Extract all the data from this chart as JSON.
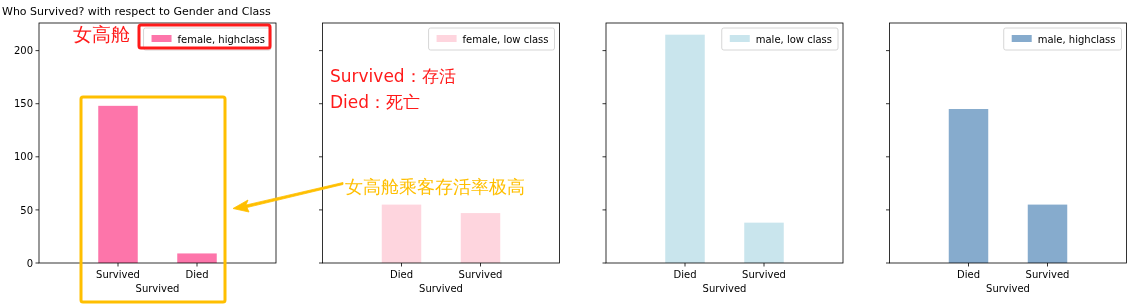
{
  "chart_data": [
    {
      "type": "bar",
      "title": "Who Survived? with respect to Gender and Class",
      "xlabel": "Survived",
      "categories": [
        "Survived",
        "Died"
      ],
      "series": [
        {
          "name": "female, highclass",
          "color": "#fd75aa",
          "values": [
            148,
            9
          ]
        }
      ],
      "ylim": [
        0,
        226
      ],
      "yticks": [
        0,
        50,
        100,
        150,
        200
      ],
      "legend": "top right",
      "annotations": [
        "女高舱"
      ]
    },
    {
      "type": "bar",
      "xlabel": "Survived",
      "categories": [
        "Died",
        "Survived"
      ],
      "series": [
        {
          "name": "female, low class",
          "color": "#fed5de",
          "values": [
            55,
            47
          ]
        }
      ],
      "ylim": [
        0,
        226
      ],
      "yticks": [
        0,
        50,
        100,
        150,
        200
      ],
      "tick_labels": "x",
      "legend": "top right",
      "annotations": [
        "Survived：存活",
        "Died：死亡",
        "女高舱乘客存活率极高"
      ]
    },
    {
      "type": "bar",
      "xlabel": "Survived",
      "categories": [
        "Died",
        "Survived"
      ],
      "series": [
        {
          "name": "male, low class",
          "color": "#c9e5ed",
          "values": [
            215,
            38
          ]
        }
      ],
      "ylim": [
        0,
        226
      ],
      "yticks": [
        0,
        50,
        100,
        150,
        200
      ],
      "tick_labels": "x",
      "legend": "top right"
    },
    {
      "type": "bar",
      "xlabel": "Survived",
      "categories": [
        "Died",
        "Survived"
      ],
      "series": [
        {
          "name": "male, highclass",
          "color": "#86abcd",
          "values": [
            145,
            55
          ]
        }
      ],
      "ylim": [
        0,
        226
      ],
      "yticks": [
        0,
        50,
        100,
        150,
        200
      ],
      "tick_labels": "x",
      "legend": "top right"
    }
  ]
}
